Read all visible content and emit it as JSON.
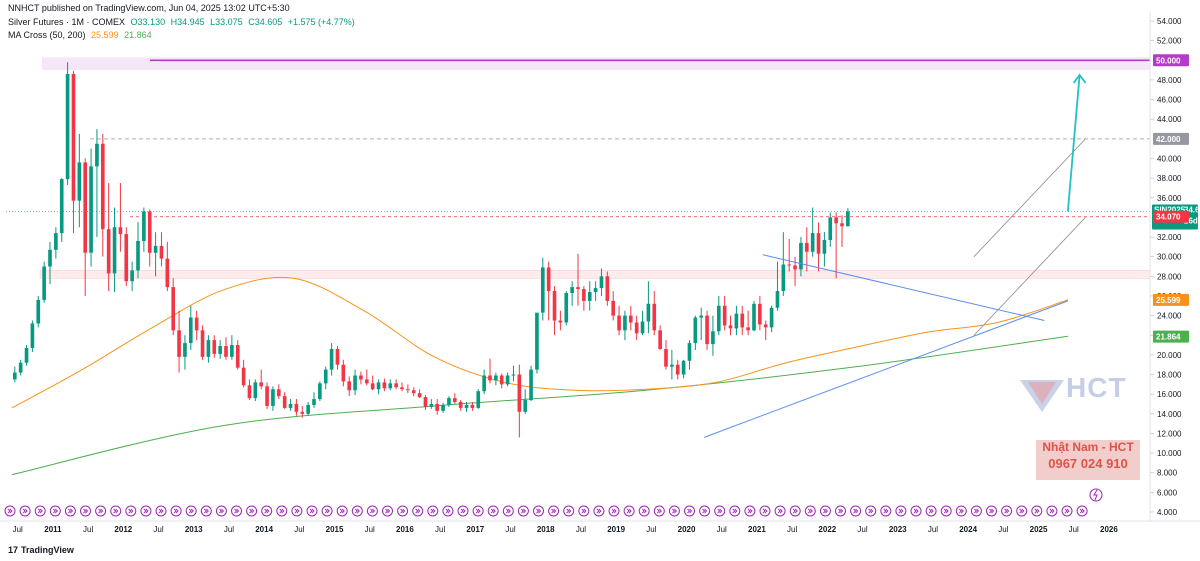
{
  "header": {
    "published": "NNHCT published on TradingView.com, Jun 04, 2025 13:02 UTC+5:30",
    "symbol": "Silver Futures · 1M · COMEX",
    "ohlc": {
      "o": "O33.130",
      "h": "H34.945",
      "l": "L33.075",
      "c": "C34.605",
      "chg": "+1.575 (+4.77%)"
    },
    "ma_label": "MA Cross (50, 200)",
    "ma50": "25.599",
    "ma200": "21.864"
  },
  "footer": {
    "brand": "TradingView"
  },
  "watermark": {
    "brand": "HCT",
    "name": "Nhật Nam - HCT",
    "phone": "0967 024 910"
  },
  "colors": {
    "up": "#089981",
    "down": "#f23645",
    "ma50": "#f7931a",
    "ma200": "#4caf50",
    "trend": "#5b8def",
    "channel": "#888888",
    "target": "#b33dc6",
    "arrow": "#22c1c3"
  },
  "chart_data": {
    "type": "candlestick",
    "title": "Silver Futures · 1M · COMEX",
    "y_ticks": [
      "54.000",
      "52.000",
      "48.000",
      "46.000",
      "44.000",
      "40.000",
      "38.000",
      "36.000",
      "32.000",
      "30.000",
      "28.000",
      "26.000",
      "24.000",
      "22.000",
      "20.000",
      "18.000",
      "16.000",
      "14.000",
      "12.000",
      "10.000",
      "8.000",
      "6.000",
      "4.000"
    ],
    "ylim": [
      4,
      54
    ],
    "x_ticks": [
      "Jul",
      "2011",
      "Jul",
      "2012",
      "Jul",
      "2013",
      "Jul",
      "2014",
      "Jul",
      "2015",
      "Jul",
      "2016",
      "Jul",
      "2017",
      "Jul",
      "2018",
      "Jul",
      "2019",
      "Jul",
      "2020",
      "Jul",
      "2021",
      "Jul",
      "2022",
      "Jul",
      "2023",
      "Jul",
      "2024",
      "Jul",
      "2025",
      "Jul",
      "2026"
    ],
    "price_tags": [
      {
        "label": "50.000",
        "value": 50.0,
        "color": "#b33dc6"
      },
      {
        "label": "42.000",
        "value": 42.0,
        "color": "#9598a1"
      },
      {
        "label": "SIN2025",
        "value": 34.605,
        "color": "#089981",
        "extra": "34.605",
        "countdown": "26d 14h"
      },
      {
        "label": "34.070",
        "value": 34.07,
        "color": "#f23645"
      },
      {
        "label": "25.599",
        "value": 25.599,
        "color": "#f7931a"
      },
      {
        "label": "21.864",
        "value": 21.864,
        "color": "#4caf50"
      }
    ],
    "levels": {
      "resistance_50": 50.0,
      "level_42": 42.0,
      "level_34": 34.07,
      "support_zone": [
        27.8,
        28.6
      ]
    },
    "candles": [
      [
        17.5,
        18.8,
        17.2,
        18.2
      ],
      [
        18.2,
        19.5,
        17.9,
        19.2
      ],
      [
        19.2,
        21.0,
        18.9,
        20.7
      ],
      [
        20.7,
        23.5,
        20.3,
        23.2
      ],
      [
        23.2,
        26.0,
        22.8,
        25.6
      ],
      [
        25.6,
        29.5,
        25.3,
        29.0
      ],
      [
        29.0,
        31.5,
        27.2,
        30.7
      ],
      [
        30.7,
        33.0,
        29.8,
        32.4
      ],
      [
        32.4,
        38.0,
        31.5,
        37.9
      ],
      [
        37.9,
        49.8,
        37.3,
        48.6
      ],
      [
        48.6,
        48.9,
        32.4,
        35.7
      ],
      [
        35.7,
        42.5,
        33.0,
        39.6
      ],
      [
        39.6,
        40.0,
        26.0,
        30.4
      ],
      [
        30.4,
        41.0,
        29.0,
        39.2
      ],
      [
        39.2,
        43.0,
        32.0,
        41.5
      ],
      [
        41.5,
        42.5,
        30.0,
        32.8
      ],
      [
        32.8,
        37.5,
        26.5,
        28.3
      ],
      [
        28.3,
        35.0,
        26.4,
        33.0
      ],
      [
        33.0,
        37.5,
        30.5,
        32.3
      ],
      [
        32.3,
        33.0,
        27.0,
        27.5
      ],
      [
        27.5,
        29.5,
        26.5,
        28.6
      ],
      [
        28.6,
        33.5,
        27.8,
        31.6
      ],
      [
        31.6,
        35.0,
        30.5,
        34.6
      ],
      [
        34.6,
        34.8,
        29.0,
        30.4
      ],
      [
        30.4,
        32.5,
        28.0,
        31.1
      ],
      [
        31.1,
        32.5,
        29.0,
        29.8
      ],
      [
        29.8,
        31.5,
        26.5,
        26.9
      ],
      [
        26.9,
        27.8,
        22.0,
        22.5
      ],
      [
        22.5,
        24.5,
        18.2,
        19.8
      ],
      [
        19.8,
        22.0,
        18.5,
        21.2
      ],
      [
        21.2,
        25.0,
        20.5,
        23.8
      ],
      [
        23.8,
        24.5,
        21.5,
        22.5
      ],
      [
        22.5,
        23.0,
        19.5,
        19.8
      ],
      [
        19.8,
        22.0,
        19.2,
        21.5
      ],
      [
        21.5,
        22.0,
        19.7,
        20.1
      ],
      [
        20.1,
        21.5,
        19.6,
        20.9
      ],
      [
        20.9,
        21.8,
        19.5,
        19.8
      ],
      [
        19.8,
        22.0,
        19.5,
        21.0
      ],
      [
        21.0,
        21.5,
        18.5,
        18.7
      ],
      [
        18.7,
        19.5,
        16.7,
        16.9
      ],
      [
        16.9,
        17.5,
        15.4,
        15.6
      ],
      [
        15.6,
        17.5,
        15.3,
        17.2
      ],
      [
        17.2,
        18.5,
        16.5,
        16.8
      ],
      [
        16.8,
        17.2,
        14.5,
        14.8
      ],
      [
        14.8,
        16.8,
        14.3,
        16.5
      ],
      [
        16.5,
        17.0,
        15.5,
        15.8
      ],
      [
        15.8,
        16.2,
        14.5,
        14.6
      ],
      [
        14.6,
        15.5,
        14.3,
        15.0
      ],
      [
        15.0,
        15.5,
        13.8,
        14.2
      ],
      [
        14.2,
        14.8,
        13.6,
        14.0
      ],
      [
        14.0,
        15.2,
        13.8,
        14.9
      ],
      [
        14.9,
        16.2,
        14.6,
        15.5
      ],
      [
        15.5,
        17.3,
        15.3,
        17.1
      ],
      [
        17.1,
        18.8,
        16.5,
        18.5
      ],
      [
        18.5,
        21.2,
        17.9,
        20.6
      ],
      [
        20.6,
        20.9,
        18.5,
        19.0
      ],
      [
        19.0,
        19.5,
        16.8,
        17.3
      ],
      [
        17.3,
        17.8,
        15.8,
        16.4
      ],
      [
        16.4,
        18.5,
        15.9,
        17.9
      ],
      [
        17.9,
        18.3,
        17.0,
        17.5
      ],
      [
        17.5,
        18.5,
        16.9,
        17.1
      ],
      [
        17.1,
        17.9,
        16.4,
        16.5
      ],
      [
        16.5,
        17.5,
        16.0,
        17.2
      ],
      [
        17.2,
        17.6,
        16.3,
        16.6
      ],
      [
        16.6,
        17.5,
        16.4,
        17.1
      ],
      [
        17.1,
        17.5,
        16.5,
        16.7
      ],
      [
        16.7,
        17.2,
        16.3,
        16.5
      ],
      [
        16.5,
        17.0,
        16.1,
        16.4
      ],
      [
        16.4,
        16.7,
        15.8,
        16.1
      ],
      [
        16.1,
        16.5,
        15.6,
        15.7
      ],
      [
        15.7,
        15.9,
        14.4,
        14.7
      ],
      [
        14.7,
        15.5,
        14.5,
        15.0
      ],
      [
        15.0,
        15.5,
        13.9,
        14.3
      ],
      [
        14.3,
        15.1,
        14.1,
        14.9
      ],
      [
        14.9,
        15.8,
        14.7,
        15.6
      ],
      [
        15.6,
        16.1,
        15.0,
        15.2
      ],
      [
        15.2,
        15.4,
        14.3,
        14.6
      ],
      [
        14.6,
        15.2,
        14.2,
        14.9
      ],
      [
        14.9,
        15.2,
        14.3,
        14.6
      ],
      [
        14.6,
        16.5,
        14.5,
        16.3
      ],
      [
        16.3,
        18.5,
        16.0,
        17.9
      ],
      [
        17.9,
        19.6,
        17.1,
        17.4
      ],
      [
        17.4,
        18.2,
        16.9,
        17.9
      ],
      [
        17.9,
        18.1,
        16.6,
        17.0
      ],
      [
        17.0,
        18.2,
        16.8,
        17.9
      ],
      [
        17.9,
        18.9,
        17.3,
        18.0
      ],
      [
        18.0,
        19.0,
        11.6,
        14.2
      ],
      [
        14.2,
        16.5,
        14.0,
        15.4
      ],
      [
        15.4,
        18.9,
        15.3,
        18.5
      ],
      [
        18.5,
        24.0,
        18.1,
        24.3
      ],
      [
        24.3,
        29.9,
        23.5,
        28.9
      ],
      [
        28.9,
        29.5,
        23.5,
        26.5
      ],
      [
        26.5,
        27.0,
        22.0,
        23.5
      ],
      [
        23.5,
        24.5,
        22.5,
        23.3
      ],
      [
        23.3,
        26.5,
        23.0,
        26.3
      ],
      [
        26.3,
        27.5,
        25.0,
        26.9
      ],
      [
        26.9,
        30.3,
        25.0,
        26.7
      ],
      [
        26.7,
        27.0,
        24.5,
        25.5
      ],
      [
        25.5,
        27.5,
        24.5,
        26.4
      ],
      [
        26.4,
        27.5,
        25.5,
        26.8
      ],
      [
        26.8,
        28.8,
        26.0,
        28.0
      ],
      [
        28.0,
        28.5,
        25.0,
        25.5
      ],
      [
        25.5,
        26.5,
        23.5,
        24.0
      ],
      [
        24.0,
        25.0,
        22.0,
        22.5
      ],
      [
        22.5,
        24.5,
        21.5,
        24.0
      ],
      [
        24.0,
        25.0,
        22.5,
        23.3
      ],
      [
        23.3,
        24.0,
        21.5,
        22.2
      ],
      [
        22.2,
        24.5,
        22.0,
        23.4
      ],
      [
        23.4,
        27.5,
        22.2,
        25.2
      ],
      [
        25.2,
        26.5,
        22.0,
        22.5
      ],
      [
        22.5,
        23.0,
        20.5,
        20.6
      ],
      [
        20.6,
        21.5,
        18.5,
        18.8
      ],
      [
        18.8,
        20.5,
        17.5,
        19.0
      ],
      [
        19.0,
        19.5,
        17.5,
        18.0
      ],
      [
        18.0,
        19.5,
        17.6,
        19.4
      ],
      [
        19.4,
        21.5,
        18.5,
        21.2
      ],
      [
        21.2,
        24.0,
        20.5,
        23.8
      ],
      [
        23.8,
        24.8,
        21.5,
        24.0
      ],
      [
        24.0,
        24.5,
        20.5,
        21.1
      ],
      [
        21.1,
        24.0,
        19.9,
        22.4
      ],
      [
        22.4,
        26.0,
        22.0,
        25.0
      ],
      [
        25.0,
        26.0,
        22.5,
        23.0
      ],
      [
        23.0,
        24.0,
        22.0,
        22.7
      ],
      [
        22.7,
        25.0,
        22.0,
        24.2
      ],
      [
        24.2,
        25.0,
        22.0,
        22.8
      ],
      [
        22.8,
        24.5,
        22.0,
        22.5
      ],
      [
        22.5,
        25.5,
        22.4,
        25.2
      ],
      [
        25.2,
        26.0,
        22.5,
        23.1
      ],
      [
        23.1,
        23.5,
        21.5,
        22.8
      ],
      [
        22.8,
        25.0,
        22.3,
        24.8
      ],
      [
        24.8,
        29.5,
        24.5,
        26.5
      ],
      [
        26.5,
        32.5,
        26.0,
        29.2
      ],
      [
        29.2,
        31.8,
        28.5,
        29.1
      ],
      [
        29.1,
        30.0,
        27.0,
        28.7
      ],
      [
        28.7,
        32.0,
        28.0,
        31.4
      ],
      [
        31.4,
        33.0,
        28.5,
        30.5
      ],
      [
        30.5,
        35.0,
        30.0,
        32.4
      ],
      [
        32.4,
        33.5,
        28.5,
        30.3
      ],
      [
        30.3,
        32.5,
        29.0,
        31.7
      ],
      [
        31.7,
        34.5,
        31.0,
        34.0
      ],
      [
        34.0,
        34.5,
        27.8,
        33.4
      ],
      [
        33.4,
        34.2,
        31.0,
        33.1
      ],
      [
        33.1,
        34.945,
        33.075,
        34.605
      ]
    ],
    "ma50": {
      "name": "MA 50",
      "x": [
        "2010-06",
        "2011-06",
        "2012-06",
        "2013-06",
        "2014-06",
        "2015-06",
        "2016-06",
        "2017-06",
        "2018-06",
        "2019-06",
        "2020-06",
        "2021-06",
        "2022-06",
        "2023-06",
        "2024-06",
        "2025-06"
      ],
      "values": [
        14.6,
        18.5,
        22.8,
        26.6,
        27.8,
        24.5,
        19.8,
        17.2,
        16.4,
        16.5,
        17.2,
        19.2,
        20.8,
        22.3,
        23.3,
        25.6
      ]
    },
    "ma200": {
      "name": "MA 200",
      "x": [
        "2010-06",
        "2013-06",
        "2016-06",
        "2019-06",
        "2022-06",
        "2025-06"
      ],
      "values": [
        7.8,
        12.8,
        14.8,
        16.4,
        18.8,
        21.9
      ]
    },
    "annotations": [
      {
        "type": "trendline",
        "points": [
          [
            "2020-04",
            11.6
          ],
          [
            "2025-06",
            25.5
          ]
        ]
      },
      {
        "type": "trendline",
        "points": [
          [
            "2021-02",
            30.2
          ],
          [
            "2025-02",
            23.5
          ]
        ]
      },
      {
        "type": "channel",
        "upper": [
          [
            "2024-02",
            30.0
          ],
          [
            "2025-09",
            42.0
          ]
        ],
        "lower": [
          [
            "2024-02",
            22.0
          ],
          [
            "2025-09",
            34.0
          ]
        ]
      },
      {
        "type": "arrow",
        "from": [
          "2025-06",
          34.6
        ],
        "to": [
          "2025-08",
          48.5
        ]
      }
    ]
  }
}
